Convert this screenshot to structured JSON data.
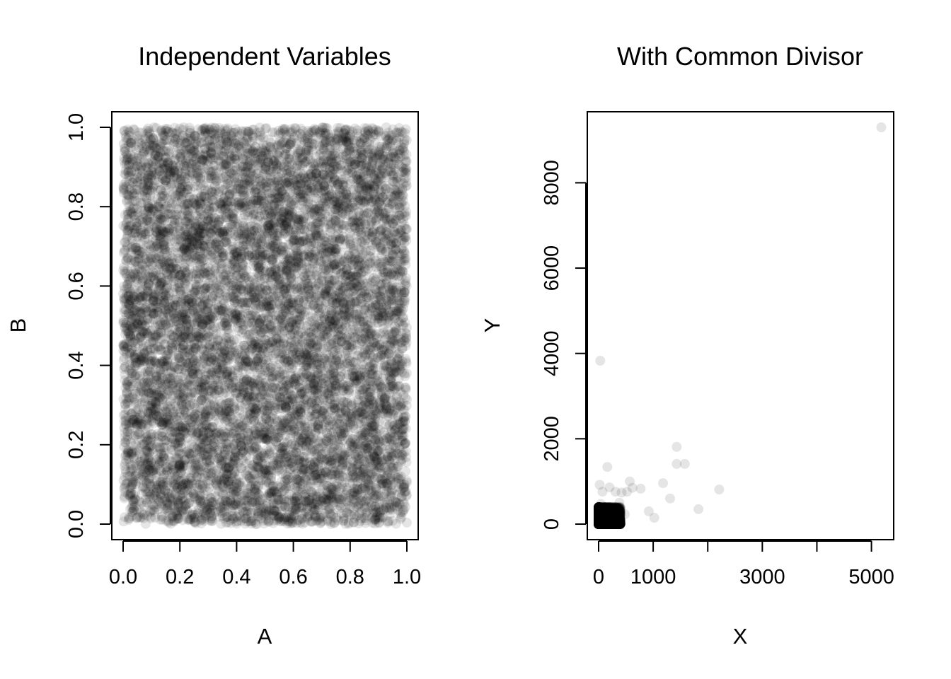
{
  "chart_data": [
    {
      "type": "scatter",
      "title": "Independent Variables",
      "xlabel": "A",
      "ylabel": "B",
      "xlim": [
        0,
        1
      ],
      "ylim": [
        0,
        1
      ],
      "grid": false,
      "point_color": "#000000",
      "point_opacity": 0.1,
      "distribution": "uniform",
      "n_points": 10000,
      "x_ticks": [
        0.0,
        0.2,
        0.4,
        0.6,
        0.8,
        1.0
      ],
      "x_tick_labels": [
        "0.0",
        "0.2",
        "0.4",
        "0.6",
        "0.8",
        "1.0"
      ],
      "y_ticks": [
        0.0,
        0.2,
        0.4,
        0.6,
        0.8,
        1.0
      ],
      "y_tick_labels": [
        "0.0",
        "0.2",
        "0.4",
        "0.6",
        "0.8",
        "1.0"
      ]
    },
    {
      "type": "scatter",
      "title": "With Common Divisor",
      "xlabel": "X",
      "ylabel": "Y",
      "xlim": [
        0,
        5200
      ],
      "ylim": [
        0,
        9300
      ],
      "grid": false,
      "point_color": "#000000",
      "point_opacity": 0.1,
      "x_ticks": [
        0,
        1000,
        2000,
        3000,
        4000,
        5000
      ],
      "x_tick_labels": [
        "0",
        "1000",
        "",
        "3000",
        "",
        "5000"
      ],
      "y_ticks": [
        0,
        2000,
        4000,
        6000,
        8000
      ],
      "y_tick_labels": [
        "0",
        "2000",
        "4000",
        "6000",
        "8000"
      ],
      "outliers": {
        "x": [
          5180,
          1430,
          1430,
          1580,
          2210,
          1830,
          1310,
          1180,
          920,
          1020,
          770,
          570,
          620,
          520,
          420,
          380,
          310,
          200,
          160,
          30,
          20,
          70,
          40,
          120,
          480
        ],
        "y": [
          9300,
          1810,
          1410,
          1410,
          810,
          350,
          600,
          960,
          300,
          150,
          830,
          1000,
          850,
          760,
          740,
          500,
          760,
          860,
          1340,
          3830,
          920,
          760,
          470,
          400,
          230
        ]
      },
      "cluster": {
        "x_range": [
          0,
          400
        ],
        "y_range": [
          0,
          400
        ],
        "n_points": 9975
      }
    }
  ]
}
